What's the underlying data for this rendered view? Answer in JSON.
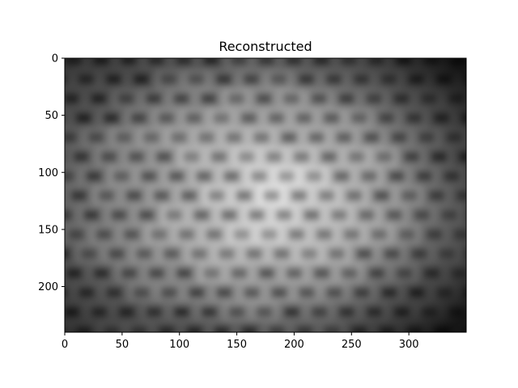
{
  "chart_data": {
    "type": "heatmap",
    "title": "Reconstructed",
    "xlabel": "",
    "ylabel": "",
    "colormap": "gray",
    "image_width": 350,
    "image_height": 240,
    "xlim": [
      0,
      350
    ],
    "ylim": [
      240,
      0
    ],
    "x_ticks": [
      0,
      50,
      100,
      150,
      200,
      250,
      300
    ],
    "y_ticks": [
      0,
      50,
      100,
      150,
      200
    ],
    "grid": false,
    "legend": "none",
    "description": "Blurry grayscale image of a textured surface (brick-like grid pattern), bright in the center and dark toward the edges."
  }
}
